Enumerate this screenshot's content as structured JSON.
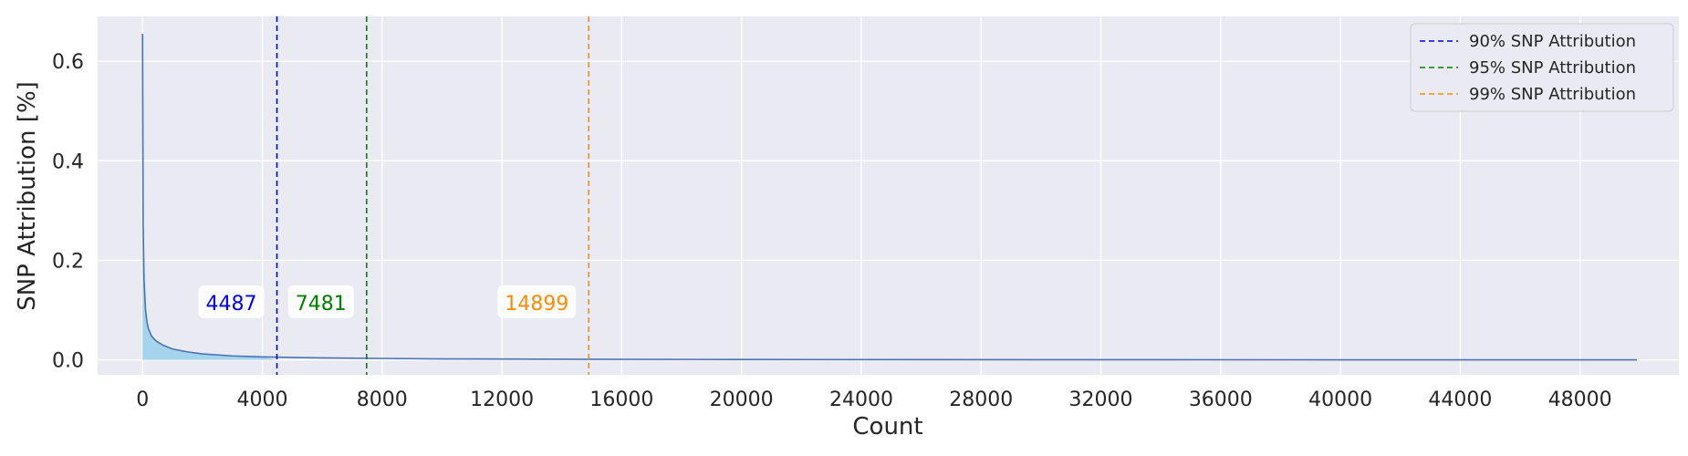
{
  "chart_data": {
    "type": "line",
    "title": "",
    "xlabel": "Count",
    "ylabel": "SNP Attribution [%]",
    "xlim": [
      -1500,
      51300
    ],
    "ylim": [
      -0.03,
      0.69
    ],
    "xticks": [
      0,
      4000,
      8000,
      12000,
      16000,
      20000,
      24000,
      28000,
      32000,
      36000,
      40000,
      44000,
      48000
    ],
    "yticks": [
      0.0,
      0.2,
      0.4,
      0.6
    ],
    "ytick_labels": [
      "0.0",
      "0.2",
      "0.4",
      "0.6"
    ],
    "grid": true,
    "legend_position": "top-right",
    "series": [
      {
        "color": "#4c72b0",
        "fill_color": "#a6d4ee",
        "x": [
          0,
          20,
          50,
          100,
          150,
          200,
          300,
          400,
          500,
          700,
          1000,
          1500,
          2000,
          3000,
          4000,
          5000,
          6000,
          8000,
          10000,
          15000,
          20000,
          30000,
          40000,
          49900
        ],
        "y": [
          0.655,
          0.27,
          0.16,
          0.1,
          0.075,
          0.062,
          0.048,
          0.041,
          0.036,
          0.029,
          0.022,
          0.016,
          0.012,
          0.008,
          0.006,
          0.005,
          0.004,
          0.003,
          0.002,
          0.0012,
          0.0008,
          0.0004,
          0.0002,
          0.0001
        ]
      }
    ],
    "thresholds": [
      {
        "name": "90% SNP Attribution",
        "x": 4487,
        "label": "4487",
        "color": "#0000ff"
      },
      {
        "name": "95% SNP Attribution",
        "x": 7481,
        "label": "7481",
        "color": "#008000"
      },
      {
        "name": "99% SNP Attribution",
        "x": 14899,
        "label": "14899",
        "color": "#ff8c00"
      }
    ],
    "threshold_label_y": 0.115,
    "colors": {
      "plot_background": "#eaeaf2",
      "grid": "#ffffff"
    }
  }
}
